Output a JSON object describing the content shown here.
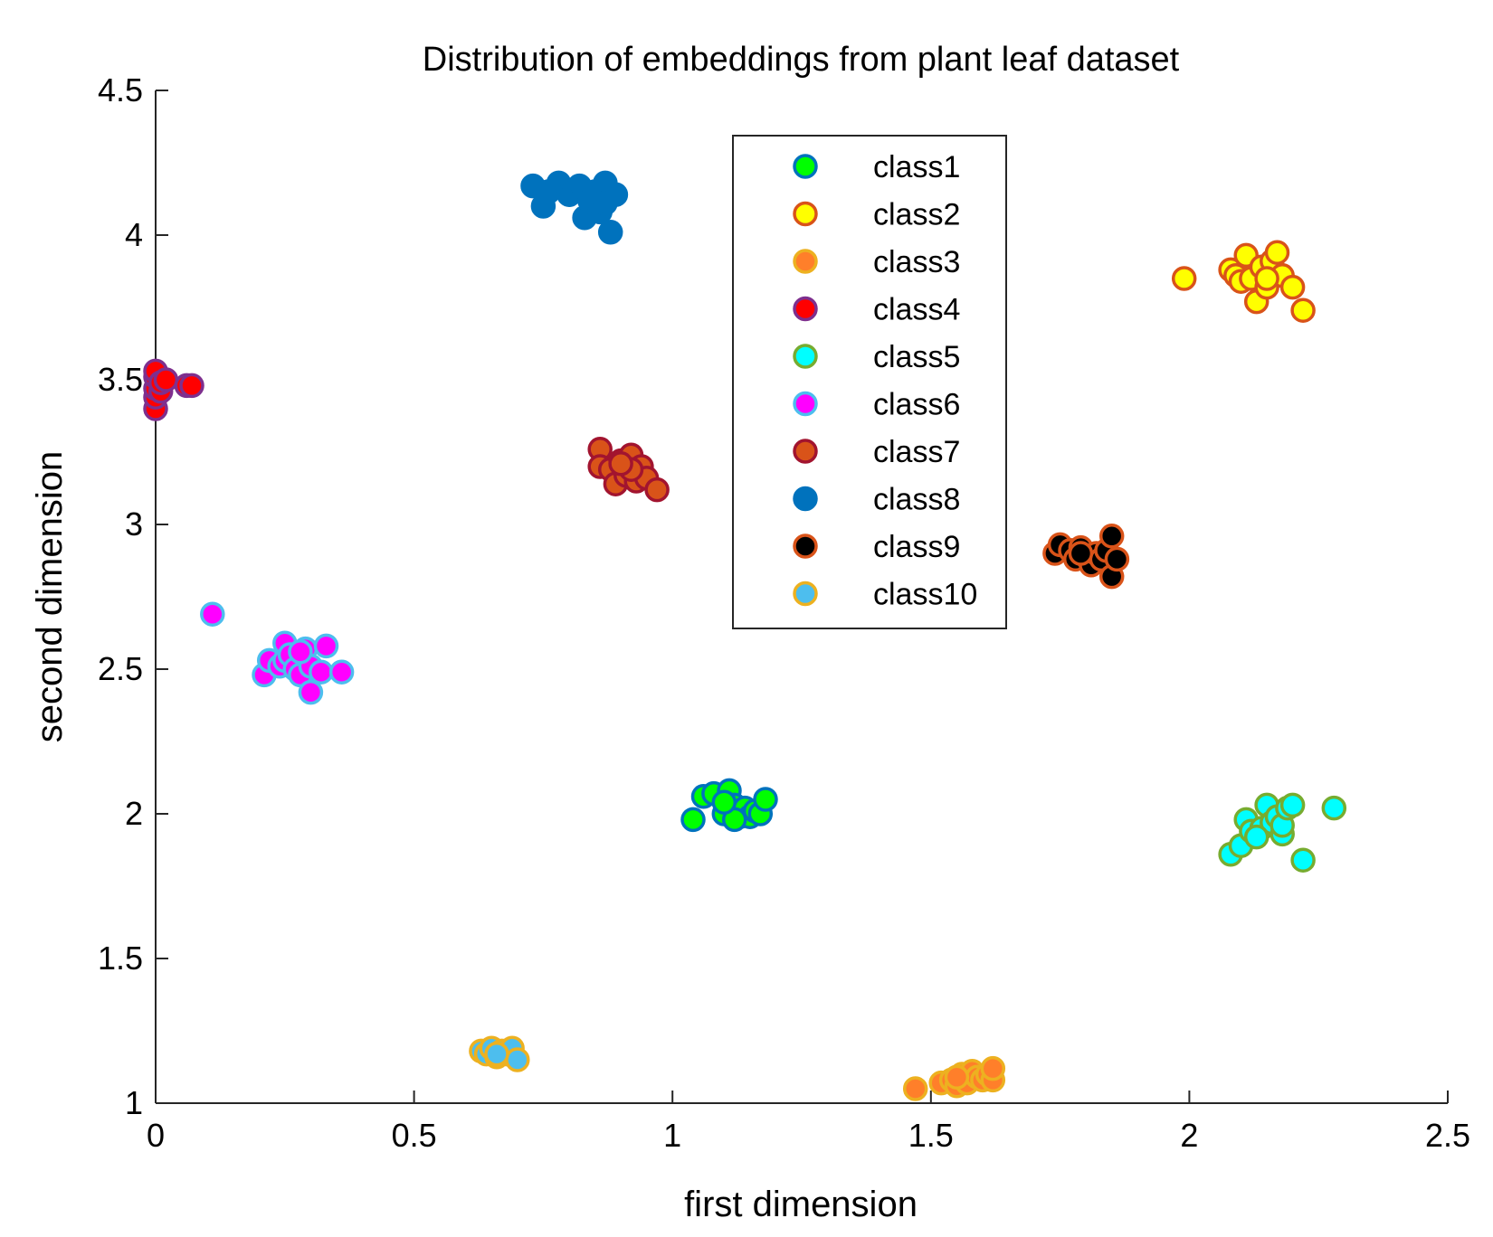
{
  "chart_data": {
    "type": "scatter",
    "title": "Distribution of embeddings from plant leaf dataset",
    "xlabel": "first dimension",
    "ylabel": "second dimension",
    "xlim": [
      0,
      2.5
    ],
    "ylim": [
      1,
      4.5
    ],
    "xticks": [
      "0",
      "0.5",
      "1",
      "1.5",
      "2",
      "2.5"
    ],
    "yticks": [
      "1",
      "1.5",
      "2",
      "2.5",
      "3",
      "3.5",
      "4",
      "4.5"
    ],
    "legend_position": "top-center",
    "series": [
      {
        "name": "class1",
        "fill": "#00ff00",
        "edge": "#0072bd",
        "points": [
          [
            1.04,
            1.98
          ],
          [
            1.06,
            2.06
          ],
          [
            1.08,
            2.07
          ],
          [
            1.1,
            2.0
          ],
          [
            1.11,
            2.08
          ],
          [
            1.12,
            2.03
          ],
          [
            1.13,
            1.99
          ],
          [
            1.14,
            2.02
          ],
          [
            1.15,
            1.99
          ],
          [
            1.16,
            2.01
          ],
          [
            1.17,
            2.0
          ],
          [
            1.18,
            2.05
          ],
          [
            1.12,
            1.98
          ],
          [
            1.1,
            2.04
          ]
        ]
      },
      {
        "name": "class2",
        "fill": "#ffff00",
        "edge": "#d95319",
        "points": [
          [
            1.99,
            3.85
          ],
          [
            2.08,
            3.88
          ],
          [
            2.09,
            3.86
          ],
          [
            2.1,
            3.84
          ],
          [
            2.11,
            3.93
          ],
          [
            2.12,
            3.85
          ],
          [
            2.13,
            3.77
          ],
          [
            2.14,
            3.89
          ],
          [
            2.15,
            3.82
          ],
          [
            2.16,
            3.91
          ],
          [
            2.17,
            3.94
          ],
          [
            2.18,
            3.86
          ],
          [
            2.2,
            3.82
          ],
          [
            2.22,
            3.74
          ],
          [
            2.15,
            3.85
          ]
        ]
      },
      {
        "name": "class3",
        "fill": "#ff7f2a",
        "edge": "#edb120",
        "points": [
          [
            1.47,
            1.05
          ],
          [
            1.52,
            1.07
          ],
          [
            1.54,
            1.08
          ],
          [
            1.55,
            1.06
          ],
          [
            1.56,
            1.1
          ],
          [
            1.57,
            1.07
          ],
          [
            1.58,
            1.11
          ],
          [
            1.59,
            1.09
          ],
          [
            1.6,
            1.08
          ],
          [
            1.61,
            1.1
          ],
          [
            1.62,
            1.08
          ],
          [
            1.62,
            1.12
          ],
          [
            1.55,
            1.09
          ]
        ]
      },
      {
        "name": "class4",
        "fill": "#ff0000",
        "edge": "#7e2f8e",
        "points": [
          [
            0.0,
            3.4
          ],
          [
            0.0,
            3.44
          ],
          [
            0.0,
            3.47
          ],
          [
            0.0,
            3.51
          ],
          [
            0.0,
            3.53
          ],
          [
            0.01,
            3.46
          ],
          [
            0.01,
            3.49
          ],
          [
            0.02,
            3.5
          ],
          [
            0.06,
            3.48
          ],
          [
            0.07,
            3.48
          ]
        ]
      },
      {
        "name": "class5",
        "fill": "#00ffff",
        "edge": "#77ac30",
        "points": [
          [
            2.08,
            1.86
          ],
          [
            2.1,
            1.89
          ],
          [
            2.11,
            1.98
          ],
          [
            2.12,
            1.94
          ],
          [
            2.14,
            1.95
          ],
          [
            2.15,
            2.03
          ],
          [
            2.16,
            1.97
          ],
          [
            2.17,
            1.99
          ],
          [
            2.18,
            1.93
          ],
          [
            2.18,
            1.96
          ],
          [
            2.19,
            2.02
          ],
          [
            2.2,
            2.03
          ],
          [
            2.22,
            1.84
          ],
          [
            2.28,
            2.02
          ],
          [
            2.13,
            1.92
          ]
        ]
      },
      {
        "name": "class6",
        "fill": "#ff00ff",
        "edge": "#4dbeee",
        "points": [
          [
            0.11,
            2.69
          ],
          [
            0.21,
            2.48
          ],
          [
            0.22,
            2.53
          ],
          [
            0.24,
            2.51
          ],
          [
            0.25,
            2.53
          ],
          [
            0.25,
            2.59
          ],
          [
            0.26,
            2.55
          ],
          [
            0.27,
            2.5
          ],
          [
            0.28,
            2.48
          ],
          [
            0.29,
            2.57
          ],
          [
            0.3,
            2.51
          ],
          [
            0.3,
            2.42
          ],
          [
            0.32,
            2.49
          ],
          [
            0.33,
            2.58
          ],
          [
            0.36,
            2.49
          ],
          [
            0.28,
            2.56
          ]
        ]
      },
      {
        "name": "class7",
        "fill": "#d95319",
        "edge": "#a2142f",
        "points": [
          [
            0.86,
            3.26
          ],
          [
            0.86,
            3.2
          ],
          [
            0.88,
            3.19
          ],
          [
            0.89,
            3.14
          ],
          [
            0.9,
            3.22
          ],
          [
            0.91,
            3.17
          ],
          [
            0.92,
            3.24
          ],
          [
            0.93,
            3.15
          ],
          [
            0.94,
            3.2
          ],
          [
            0.95,
            3.16
          ],
          [
            0.97,
            3.12
          ],
          [
            0.92,
            3.19
          ],
          [
            0.9,
            3.21
          ]
        ]
      },
      {
        "name": "class8",
        "fill": "#0072bd",
        "edge": "#0072bd",
        "points": [
          [
            0.73,
            4.17
          ],
          [
            0.75,
            4.1
          ],
          [
            0.76,
            4.15
          ],
          [
            0.78,
            4.18
          ],
          [
            0.8,
            4.14
          ],
          [
            0.82,
            4.17
          ],
          [
            0.83,
            4.06
          ],
          [
            0.84,
            4.12
          ],
          [
            0.85,
            4.15
          ],
          [
            0.86,
            4.08
          ],
          [
            0.87,
            4.18
          ],
          [
            0.88,
            4.01
          ],
          [
            0.89,
            4.14
          ],
          [
            0.87,
            4.11
          ]
        ]
      },
      {
        "name": "class9",
        "fill": "#000000",
        "edge": "#d95319",
        "points": [
          [
            1.74,
            2.9
          ],
          [
            1.75,
            2.93
          ],
          [
            1.77,
            2.91
          ],
          [
            1.78,
            2.88
          ],
          [
            1.79,
            2.92
          ],
          [
            1.8,
            2.89
          ],
          [
            1.81,
            2.86
          ],
          [
            1.82,
            2.9
          ],
          [
            1.83,
            2.88
          ],
          [
            1.84,
            2.91
          ],
          [
            1.85,
            2.96
          ],
          [
            1.85,
            2.82
          ],
          [
            1.86,
            2.88
          ],
          [
            1.79,
            2.9
          ]
        ]
      },
      {
        "name": "class10",
        "fill": "#4dbeee",
        "edge": "#edb120",
        "points": [
          [
            0.63,
            1.18
          ],
          [
            0.64,
            1.17
          ],
          [
            0.65,
            1.19
          ],
          [
            0.66,
            1.16
          ],
          [
            0.67,
            1.18
          ],
          [
            0.68,
            1.17
          ],
          [
            0.69,
            1.19
          ],
          [
            0.7,
            1.15
          ],
          [
            0.66,
            1.17
          ]
        ]
      }
    ]
  }
}
